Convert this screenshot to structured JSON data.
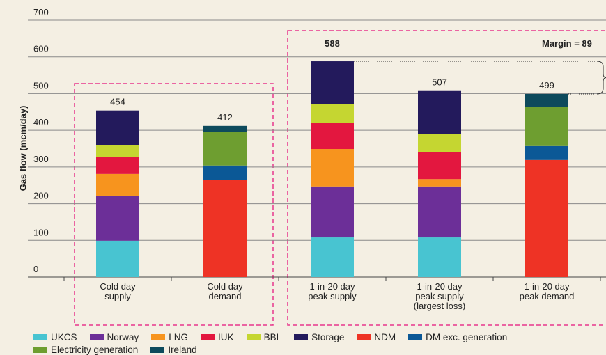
{
  "chart_data": {
    "type": "stacked_bar",
    "y_label": "Gas flow (mcm/day)",
    "categories": [
      "Cold day\nsupply",
      "Cold day\ndemand",
      "1-in-20 day\npeak supply",
      "1-in-20 day\npeak supply\n(largest loss)",
      "1-in-20 day\npeak demand"
    ],
    "totals": [
      454,
      412,
      588,
      507,
      499
    ],
    "annotation": "Margin = 89",
    "ylim": [
      0,
      700
    ],
    "yticks": [
      0,
      100,
      200,
      300,
      400,
      500,
      600,
      700
    ],
    "grid": true,
    "series": [
      {
        "name": "UKCS",
        "color": "#48c4d1",
        "values": [
          99,
          null,
          108,
          108,
          null
        ]
      },
      {
        "name": "Norway",
        "color": "#6c2f98",
        "values": [
          123,
          null,
          139,
          139,
          null
        ]
      },
      {
        "name": "LNG",
        "color": "#f7941e",
        "values": [
          59,
          null,
          102,
          20,
          null
        ]
      },
      {
        "name": "IUK",
        "color": "#e3173f",
        "values": [
          47,
          null,
          72,
          74,
          null
        ]
      },
      {
        "name": "BBL",
        "color": "#c5d631",
        "values": [
          31,
          null,
          51,
          48,
          null
        ]
      },
      {
        "name": "Storage",
        "color": "#231a5c",
        "values": [
          95,
          null,
          116,
          118,
          null
        ]
      },
      {
        "name": "NDM",
        "color": "#ee3325",
        "values": [
          null,
          264,
          null,
          null,
          319
        ]
      },
      {
        "name": "DM exc. generation",
        "color": "#0b5896",
        "values": [
          null,
          40,
          null,
          null,
          38
        ]
      },
      {
        "name": "Electricity generation",
        "color": "#6e9e30",
        "values": [
          null,
          91,
          null,
          null,
          106
        ]
      },
      {
        "name": "Ireland",
        "color": "#0d4a5c",
        "values": [
          null,
          17,
          null,
          null,
          36
        ]
      }
    ]
  }
}
